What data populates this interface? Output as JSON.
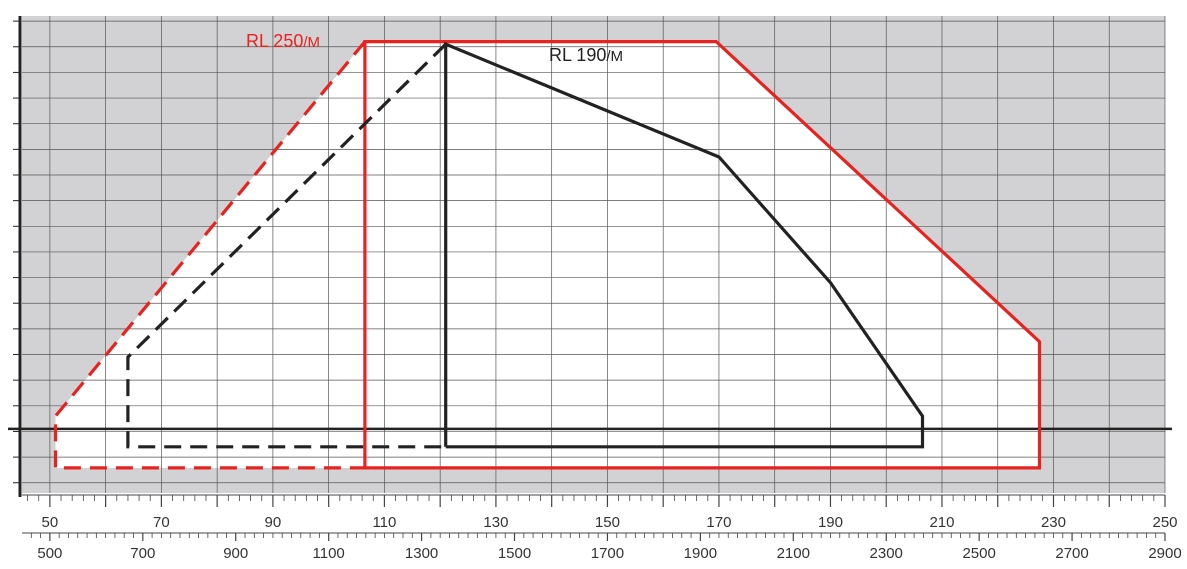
{
  "chart_data": {
    "type": "line",
    "title": "",
    "xlabel": "",
    "ylabel": "",
    "grid": true,
    "x_axes": [
      {
        "name": "top-scale",
        "range": [
          45,
          250
        ],
        "ticks": [
          "50",
          "70",
          "90",
          "110",
          "130",
          "150",
          "170",
          "190",
          "210",
          "230",
          "250"
        ]
      },
      {
        "name": "bottom-scale",
        "range": [
          440,
          2900
        ],
        "ticks": [
          "500",
          "700",
          "900",
          "1100",
          "1300",
          "1500",
          "1700",
          "1900",
          "2100",
          "2300",
          "2500",
          "2700",
          "2900"
        ]
      }
    ],
    "series": [
      {
        "name": "RL 250/M",
        "color": "#e8231f",
        "label_text": "RL 250",
        "label_suffix": "/M",
        "solid": [
          [
            106.5,
            3.58
          ],
          [
            106.5,
            20.2
          ],
          [
            169.5,
            20.2
          ],
          [
            227.5,
            8.5
          ],
          [
            227.5,
            3.58
          ],
          [
            106.5,
            3.58
          ]
        ],
        "dashed": [
          [
            106.5,
            20.2
          ],
          [
            51,
            5.6
          ],
          [
            51,
            3.58
          ],
          [
            106.5,
            3.58
          ]
        ]
      },
      {
        "name": "RL 190/M",
        "color": "#222222",
        "label_text": "RL 190",
        "label_suffix": "/M",
        "solid": [
          [
            121,
            4.4
          ],
          [
            121,
            20.1
          ],
          [
            170,
            15.7
          ],
          [
            190,
            10.8
          ],
          [
            206.5,
            5.6
          ],
          [
            206.5,
            4.4
          ],
          [
            121,
            4.4
          ]
        ],
        "dashed": [
          [
            121,
            20.1
          ],
          [
            64,
            7.9
          ],
          [
            64,
            4.4
          ],
          [
            121,
            4.4
          ]
        ]
      }
    ],
    "reference_line": {
      "y": 5.1,
      "color": "#222222"
    },
    "y_range": [
      2.6,
      21.2
    ],
    "colors": {
      "outside_region": "#d2d2d4",
      "inside_region": "#ffffff",
      "grid": "#555555"
    }
  }
}
